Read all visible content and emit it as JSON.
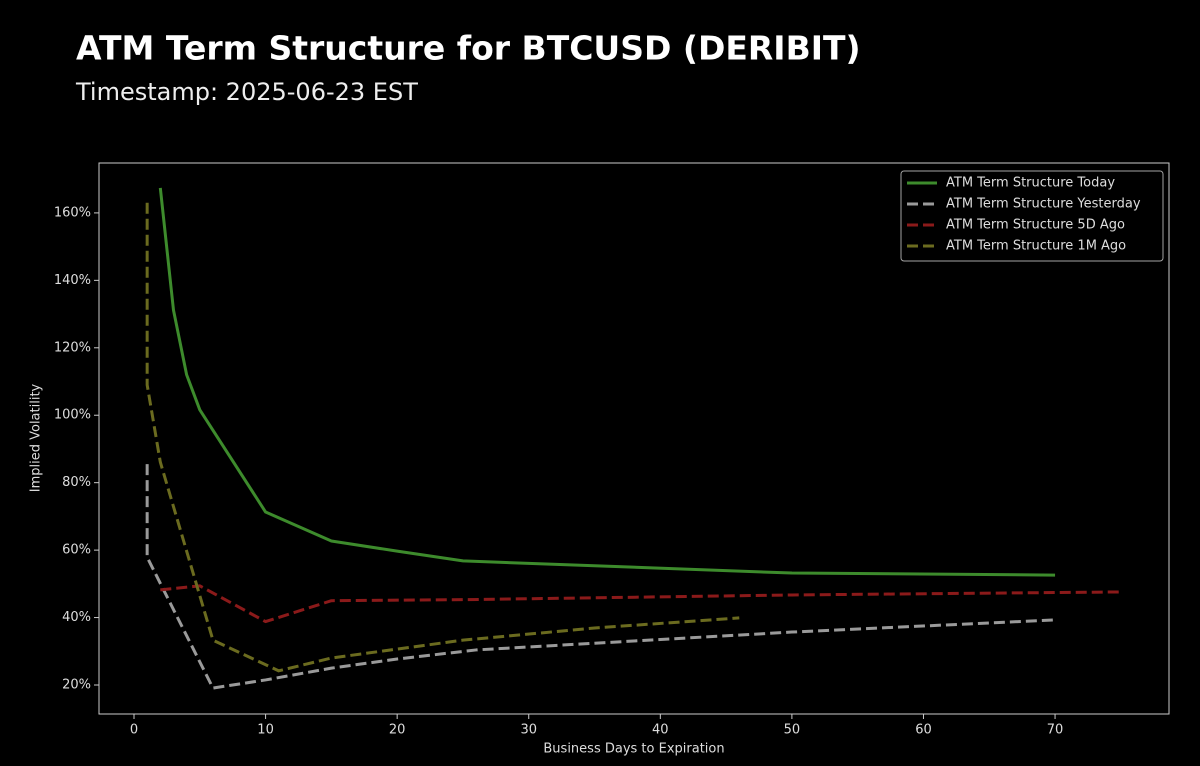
{
  "chart_data": {
    "type": "line",
    "title": "ATM Term Structure for BTCUSD (DERIBIT)",
    "subtitle": "Timestamp: 2025-06-23 EST",
    "x_label": "Business Days to Expiration",
    "y_label": "Implied Volatility",
    "xlim": [
      -2.66,
      78.66
    ],
    "xticks": [
      0,
      10,
      20,
      30,
      40,
      50,
      60,
      70
    ],
    "ylim": [
      11.4,
      174.8
    ],
    "yticks": [
      {
        "value": 20,
        "label": "20%"
      },
      {
        "value": 40,
        "label": "40%"
      },
      {
        "value": 60,
        "label": "60%"
      },
      {
        "value": 80,
        "label": "80%"
      },
      {
        "value": 100,
        "label": "100%"
      },
      {
        "value": 120,
        "label": "120%"
      },
      {
        "value": 140,
        "label": "140%"
      },
      {
        "value": 160,
        "label": "160%"
      }
    ],
    "legend": "upper right",
    "series": [
      {
        "name": "ATM Term Structure Today",
        "color": "#3d8b2c",
        "linestyle": "solid",
        "x": [
          2,
          3,
          4,
          5,
          10,
          15,
          20,
          25,
          50,
          70
        ],
        "values": [
          167.4,
          131.2,
          112,
          101.6,
          71.3,
          62.7,
          59.7,
          56.8,
          53.2,
          52.6
        ]
      },
      {
        "name": "ATM Term Structure Yesterday",
        "color": "#9a9a9a",
        "linestyle": "dashed",
        "x": [
          1,
          1,
          6,
          10,
          15,
          20,
          26,
          50,
          70
        ],
        "values": [
          85.5,
          57.9,
          19.1,
          21.5,
          25,
          27.7,
          30.4,
          35.7,
          39.3
        ]
      },
      {
        "name": "ATM Term Structure 5D Ago",
        "color": "#8b1a1a",
        "linestyle": "dashed",
        "x": [
          2,
          5,
          10,
          15,
          25,
          50,
          75
        ],
        "values": [
          48.2,
          49.4,
          38.8,
          45,
          45.3,
          46.7,
          47.6
        ]
      },
      {
        "name": "ATM Term Structure 1M Ago",
        "color": "#6b6b1f",
        "linestyle": "dashed",
        "x": [
          1,
          1,
          2,
          6,
          11,
          15,
          25,
          35,
          46
        ],
        "values": [
          163,
          109,
          86.1,
          33.3,
          24.2,
          28,
          33.3,
          36.9,
          39.9
        ]
      }
    ]
  }
}
